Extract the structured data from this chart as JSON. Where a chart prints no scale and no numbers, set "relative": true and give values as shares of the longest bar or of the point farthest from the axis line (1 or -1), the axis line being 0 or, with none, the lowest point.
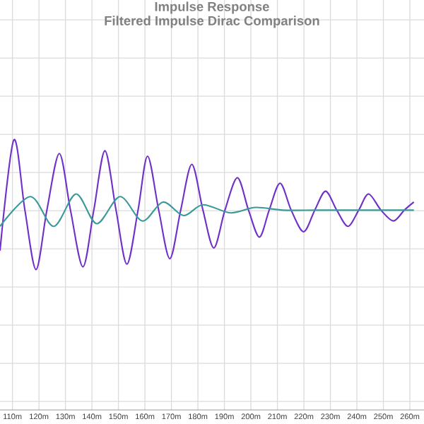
{
  "chart_data": {
    "type": "line",
    "title": "Impulse Response",
    "subtitle": "Filtered Impulse Dirac Comparison",
    "relative": true,
    "grid": true,
    "tick_labels": "x",
    "xlim": [
      105.3,
      265.3
    ],
    "xticks": [
      {
        "value": 110,
        "label": "110m"
      },
      {
        "value": 120,
        "label": "120m"
      },
      {
        "value": 130,
        "label": "130m"
      },
      {
        "value": 140,
        "label": "140m"
      },
      {
        "value": 150,
        "label": "150m"
      },
      {
        "value": 160,
        "label": "160m"
      },
      {
        "value": 170,
        "label": "170m"
      },
      {
        "value": 180,
        "label": "180m"
      },
      {
        "value": 190,
        "label": "190m"
      },
      {
        "value": 200,
        "label": "200m"
      },
      {
        "value": 210,
        "label": "210m"
      },
      {
        "value": 220,
        "label": "220m"
      },
      {
        "value": 230,
        "label": "230m"
      },
      {
        "value": 240,
        "label": "240m"
      },
      {
        "value": 250,
        "label": "250m"
      },
      {
        "value": 260,
        "label": "260m"
      }
    ],
    "series": [
      {
        "color": "#7030c8",
        "x": [
          105.3,
          110.5,
          114.7,
          118.9,
          123.0,
          127.7,
          131.9,
          136.6,
          140.7,
          144.9,
          149.1,
          153.2,
          157.4,
          161.0,
          165.2,
          169.4,
          173.5,
          177.7,
          181.9,
          186.0,
          190.2,
          194.9,
          199.1,
          203.2,
          206.9,
          211.0,
          215.2,
          219.9,
          224.1,
          228.2,
          232.4,
          236.6,
          240.7,
          244.4,
          249.1,
          253.8,
          257.9,
          261.5
        ],
        "values": [
          0.59,
          1.0,
          0.74,
          0.52,
          0.74,
          0.95,
          0.74,
          0.53,
          0.74,
          0.96,
          0.74,
          0.54,
          0.74,
          0.94,
          0.74,
          0.56,
          0.74,
          0.91,
          0.74,
          0.6,
          0.74,
          0.86,
          0.74,
          0.64,
          0.74,
          0.84,
          0.74,
          0.66,
          0.74,
          0.81,
          0.74,
          0.68,
          0.74,
          0.8,
          0.74,
          0.7,
          0.74,
          0.77
        ]
      },
      {
        "color": "#3a9a9a",
        "x": [
          105.3,
          116.8,
          125.6,
          134.0,
          141.8,
          150.6,
          159.0,
          166.8,
          174.6,
          181.9,
          192.3,
          201.7,
          212.1,
          225.1,
          240.7,
          261.5
        ],
        "values": [
          0.68,
          0.79,
          0.68,
          0.8,
          0.69,
          0.79,
          0.7,
          0.77,
          0.72,
          0.76,
          0.73,
          0.75,
          0.74,
          0.74,
          0.74,
          0.74
        ]
      }
    ]
  }
}
